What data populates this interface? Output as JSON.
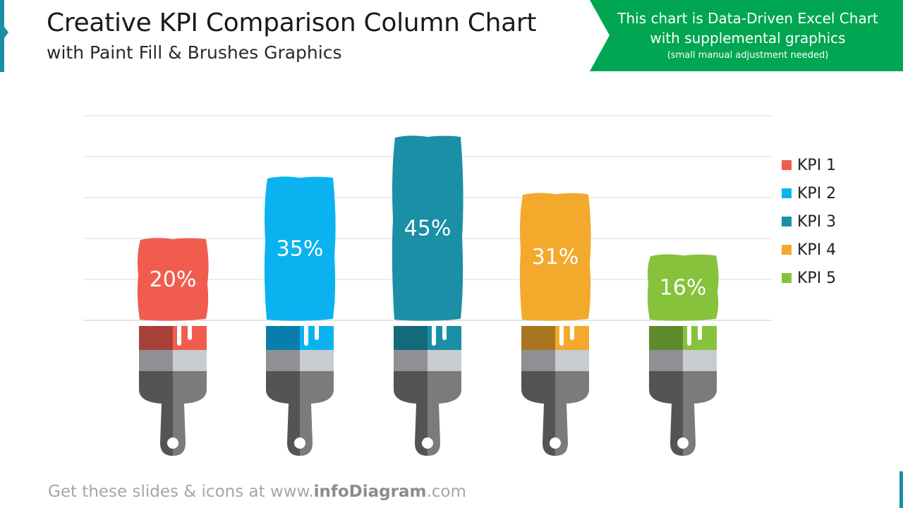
{
  "header": {
    "title": "Creative KPI Comparison Column Chart",
    "subtitle": "with Paint Fill & Brushes Graphics"
  },
  "banner": {
    "line1": "This chart is Data-Driven Excel Chart",
    "line2": "with supplemental graphics",
    "line3": "(small manual adjustment needed)",
    "color": "#00a651"
  },
  "footer": {
    "prefix": "Get these slides & icons at www.",
    "brand": "infoDiagram",
    "suffix": ".com"
  },
  "chart_data": {
    "type": "bar",
    "categories": [
      "KPI 1",
      "KPI 2",
      "KPI 3",
      "KPI 4",
      "KPI 5"
    ],
    "values": [
      20,
      35,
      45,
      31,
      16
    ],
    "data_labels": [
      "20%",
      "35%",
      "45%",
      "31%",
      "16%"
    ],
    "colors": [
      "#f05d4f",
      "#0ab3f0",
      "#1a8fa5",
      "#f2a92c",
      "#87c23c"
    ],
    "dark_colors": [
      "#a8403a",
      "#0a7eab",
      "#136a7a",
      "#a97520",
      "#5f8a2b"
    ],
    "ylim": [
      0,
      50
    ],
    "grid": true,
    "legend": "right",
    "icon": "paint-brush-icon"
  }
}
